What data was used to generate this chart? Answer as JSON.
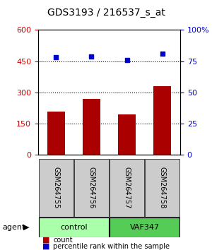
{
  "title": "GDS3193 / 216537_s_at",
  "samples": [
    "GSM264755",
    "GSM264756",
    "GSM264757",
    "GSM264758"
  ],
  "counts": [
    210,
    270,
    195,
    330
  ],
  "percentiles": [
    78,
    79,
    76,
    81
  ],
  "ylim_left": [
    0,
    600
  ],
  "ylim_right": [
    0,
    100
  ],
  "yticks_left": [
    0,
    150,
    300,
    450,
    600
  ],
  "yticks_right": [
    0,
    25,
    50,
    75,
    100
  ],
  "yticklabels_right": [
    "0",
    "25",
    "50",
    "75",
    "100%"
  ],
  "bar_color": "#aa0000",
  "dot_color": "#0000cc",
  "grid_values": [
    150,
    300,
    450
  ],
  "groups": [
    {
      "label": "control",
      "indices": [
        0,
        1
      ],
      "color": "#aaffaa"
    },
    {
      "label": "VAF347",
      "indices": [
        2,
        3
      ],
      "color": "#55cc55"
    }
  ],
  "group_row_label": "agent",
  "legend_bar_label": "count",
  "legend_dot_label": "percentile rank within the sample",
  "background_color": "#ffffff",
  "plot_bg_color": "#ffffff",
  "sample_box_color": "#cccccc"
}
